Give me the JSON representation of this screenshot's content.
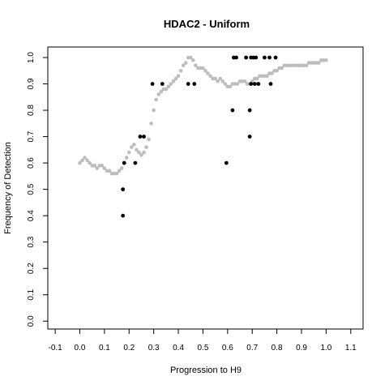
{
  "chart_data": {
    "type": "scatter",
    "title": "HDAC2 - Uniform",
    "xlabel": "Progression to H9",
    "ylabel": "Frequency of Detection",
    "xlim": [
      -0.13,
      1.15
    ],
    "ylim": [
      -0.03,
      1.04
    ],
    "xticks": [
      "-0.1",
      "0.0",
      "0.1",
      "0.2",
      "0.3",
      "0.4",
      "0.5",
      "0.6",
      "0.7",
      "0.8",
      "0.9",
      "1.0",
      "1.1"
    ],
    "yticks": [
      "0.0",
      "0.1",
      "0.2",
      "0.3",
      "0.4",
      "0.5",
      "0.6",
      "0.7",
      "0.8",
      "0.9",
      "1.0"
    ],
    "grid": false,
    "legend": "none",
    "colors": {
      "observed": "#000000",
      "smoothed": "#bdbdbd",
      "frame": "#000000"
    },
    "series": [
      {
        "values": [
          [
            0.0,
            0.6
          ],
          [
            0.01,
            0.61
          ],
          [
            0.02,
            0.62
          ],
          [
            0.03,
            0.61
          ],
          [
            0.04,
            0.6
          ],
          [
            0.05,
            0.59
          ],
          [
            0.06,
            0.59
          ],
          [
            0.07,
            0.58
          ],
          [
            0.08,
            0.59
          ],
          [
            0.09,
            0.59
          ],
          [
            0.1,
            0.58
          ],
          [
            0.11,
            0.57
          ],
          [
            0.12,
            0.57
          ],
          [
            0.13,
            0.56
          ],
          [
            0.14,
            0.56
          ],
          [
            0.15,
            0.56
          ],
          [
            0.16,
            0.57
          ],
          [
            0.17,
            0.58
          ],
          [
            0.18,
            0.6
          ],
          [
            0.19,
            0.62
          ],
          [
            0.2,
            0.64
          ],
          [
            0.21,
            0.66
          ],
          [
            0.22,
            0.67
          ],
          [
            0.23,
            0.65
          ],
          [
            0.24,
            0.64
          ],
          [
            0.25,
            0.63
          ],
          [
            0.26,
            0.64
          ],
          [
            0.27,
            0.66
          ],
          [
            0.28,
            0.69
          ],
          [
            0.29,
            0.75
          ],
          [
            0.3,
            0.8
          ],
          [
            0.31,
            0.84
          ],
          [
            0.32,
            0.86
          ],
          [
            0.33,
            0.87
          ],
          [
            0.34,
            0.88
          ],
          [
            0.35,
            0.88
          ],
          [
            0.36,
            0.89
          ],
          [
            0.37,
            0.9
          ],
          [
            0.38,
            0.91
          ],
          [
            0.39,
            0.92
          ],
          [
            0.4,
            0.93
          ],
          [
            0.41,
            0.95
          ],
          [
            0.42,
            0.97
          ],
          [
            0.43,
            0.98
          ],
          [
            0.44,
            1.0
          ],
          [
            0.45,
            1.0
          ],
          [
            0.46,
            0.99
          ],
          [
            0.47,
            0.97
          ],
          [
            0.48,
            0.96
          ],
          [
            0.49,
            0.96
          ],
          [
            0.5,
            0.96
          ],
          [
            0.51,
            0.95
          ],
          [
            0.52,
            0.94
          ],
          [
            0.53,
            0.93
          ],
          [
            0.54,
            0.92
          ],
          [
            0.55,
            0.92
          ],
          [
            0.56,
            0.91
          ],
          [
            0.57,
            0.92
          ],
          [
            0.58,
            0.91
          ],
          [
            0.59,
            0.9
          ],
          [
            0.6,
            0.89
          ],
          [
            0.61,
            0.89
          ],
          [
            0.62,
            0.9
          ],
          [
            0.63,
            0.9
          ],
          [
            0.64,
            0.9
          ],
          [
            0.65,
            0.91
          ],
          [
            0.66,
            0.91
          ],
          [
            0.67,
            0.91
          ],
          [
            0.68,
            0.9
          ],
          [
            0.69,
            0.9
          ],
          [
            0.7,
            0.91
          ],
          [
            0.71,
            0.92
          ],
          [
            0.72,
            0.92
          ],
          [
            0.73,
            0.93
          ],
          [
            0.74,
            0.93
          ],
          [
            0.75,
            0.93
          ],
          [
            0.76,
            0.93
          ],
          [
            0.77,
            0.94
          ],
          [
            0.78,
            0.94
          ],
          [
            0.79,
            0.95
          ],
          [
            0.8,
            0.95
          ],
          [
            0.81,
            0.96
          ],
          [
            0.82,
            0.96
          ],
          [
            0.83,
            0.97
          ],
          [
            0.84,
            0.97
          ],
          [
            0.85,
            0.97
          ],
          [
            0.86,
            0.97
          ],
          [
            0.87,
            0.97
          ],
          [
            0.88,
            0.97
          ],
          [
            0.89,
            0.97
          ],
          [
            0.9,
            0.97
          ],
          [
            0.91,
            0.97
          ],
          [
            0.92,
            0.97
          ],
          [
            0.93,
            0.98
          ],
          [
            0.94,
            0.98
          ],
          [
            0.95,
            0.98
          ],
          [
            0.96,
            0.98
          ],
          [
            0.97,
            0.98
          ],
          [
            0.98,
            0.99
          ],
          [
            0.99,
            0.99
          ],
          [
            1.0,
            0.99
          ]
        ]
      },
      {
        "values": [
          [
            0.175,
            0.4
          ],
          [
            0.175,
            0.5
          ],
          [
            0.18,
            0.6
          ],
          [
            0.225,
            0.6
          ],
          [
            0.245,
            0.7
          ],
          [
            0.26,
            0.7
          ],
          [
            0.295,
            0.9
          ],
          [
            0.335,
            0.9
          ],
          [
            0.44,
            0.9
          ],
          [
            0.465,
            0.9
          ],
          [
            0.595,
            0.6
          ],
          [
            0.62,
            0.8
          ],
          [
            0.625,
            1.0
          ],
          [
            0.635,
            1.0
          ],
          [
            0.675,
            1.0
          ],
          [
            0.69,
            0.8
          ],
          [
            0.69,
            0.7
          ],
          [
            0.695,
            0.9
          ],
          [
            0.695,
            1.0
          ],
          [
            0.705,
            1.0
          ],
          [
            0.71,
            0.9
          ],
          [
            0.715,
            1.0
          ],
          [
            0.725,
            0.9
          ],
          [
            0.75,
            1.0
          ],
          [
            0.77,
            1.0
          ],
          [
            0.775,
            0.9
          ],
          [
            0.795,
            1.0
          ]
        ]
      }
    ]
  }
}
